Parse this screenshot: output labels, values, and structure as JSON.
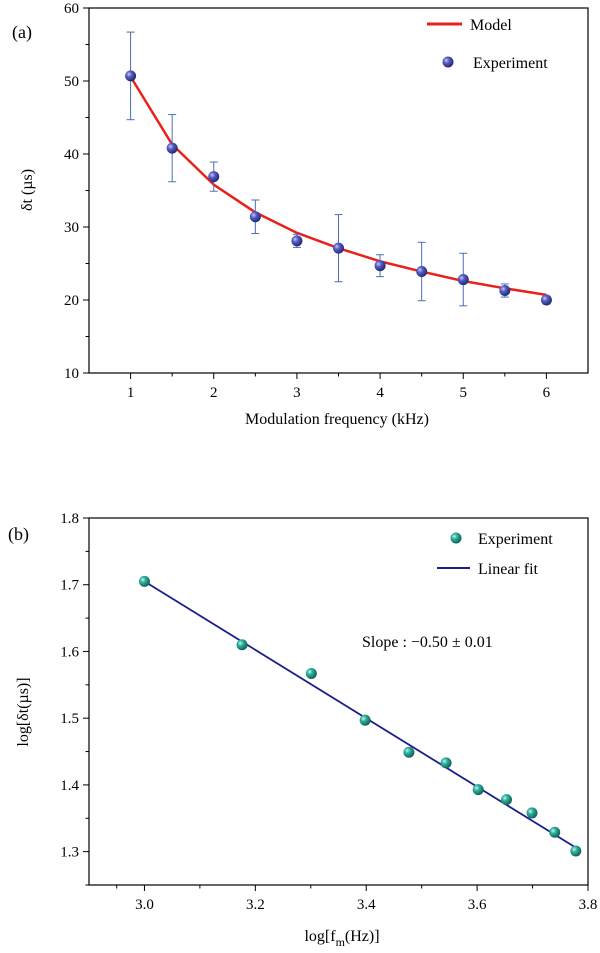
{
  "chart_data": [
    {
      "type": "scatter",
      "panel_label": "(a)",
      "xlabel": "Modulation frequency (kHz)",
      "ylabel": "δt (µs)",
      "xlim": [
        0.5,
        6.5
      ],
      "ylim": [
        10,
        60
      ],
      "xticks": [
        1,
        2,
        3,
        4,
        5,
        6
      ],
      "yticks": [
        10,
        20,
        30,
        40,
        50,
        60
      ],
      "legend_position": "top-right",
      "series": [
        {
          "name": "Model",
          "kind": "line",
          "color": "#e8221b",
          "x": [
            1.0,
            1.5,
            2.0,
            2.5,
            3.0,
            3.5,
            4.0,
            4.5,
            5.0,
            5.5,
            6.0
          ],
          "y": [
            50.6,
            41.3,
            35.8,
            32.0,
            29.2,
            27.1,
            25.3,
            23.9,
            22.6,
            21.6,
            20.7
          ]
        },
        {
          "name": "Experiment",
          "kind": "points_with_error",
          "color": "#3a3fa3",
          "x": [
            1.0,
            1.5,
            2.0,
            2.5,
            3.0,
            3.5,
            4.0,
            4.5,
            5.0,
            5.5,
            6.0
          ],
          "y": [
            50.7,
            40.8,
            36.9,
            31.4,
            28.1,
            27.1,
            24.7,
            23.9,
            22.8,
            21.3,
            20.0
          ],
          "yerr": [
            6.0,
            4.6,
            2.0,
            2.3,
            0.9,
            4.6,
            1.5,
            4.0,
            3.6,
            0.9,
            0.5
          ],
          "error_color": "#4a6fb5"
        }
      ]
    },
    {
      "type": "scatter",
      "panel_label": "(b)",
      "xlabel_main": "log[f",
      "xlabel_sub": "m",
      "xlabel_tail": "(Hz)]",
      "ylabel": "log[δt(µs)]",
      "xlim": [
        2.9,
        3.8
      ],
      "ylim": [
        1.25,
        1.8
      ],
      "xticks": [
        3.0,
        3.2,
        3.4,
        3.6,
        3.8
      ],
      "xtick_labels": [
        "3.0",
        "3.2",
        "3.4",
        "3.6",
        "3.8"
      ],
      "yticks": [
        1.3,
        1.4,
        1.5,
        1.6,
        1.7,
        1.8
      ],
      "ytick_labels": [
        "1.3",
        "1.4",
        "1.5",
        "1.6",
        "1.7",
        "1.8"
      ],
      "legend_position": "top-right",
      "annotation": "Slope : −0.50 ± 0.01",
      "series": [
        {
          "name": "Experiment",
          "kind": "points",
          "color": "#1f9a8a",
          "x": [
            3.0,
            3.176,
            3.301,
            3.398,
            3.477,
            3.544,
            3.602,
            3.653,
            3.699,
            3.74,
            3.778
          ],
          "y": [
            1.705,
            1.61,
            1.567,
            1.497,
            1.449,
            1.433,
            1.393,
            1.378,
            1.358,
            1.329,
            1.301
          ]
        },
        {
          "name": "Linear fit",
          "kind": "line",
          "color": "#1a1f8c",
          "x": [
            3.0,
            3.778
          ],
          "y": [
            1.705,
            1.306
          ]
        }
      ]
    }
  ]
}
